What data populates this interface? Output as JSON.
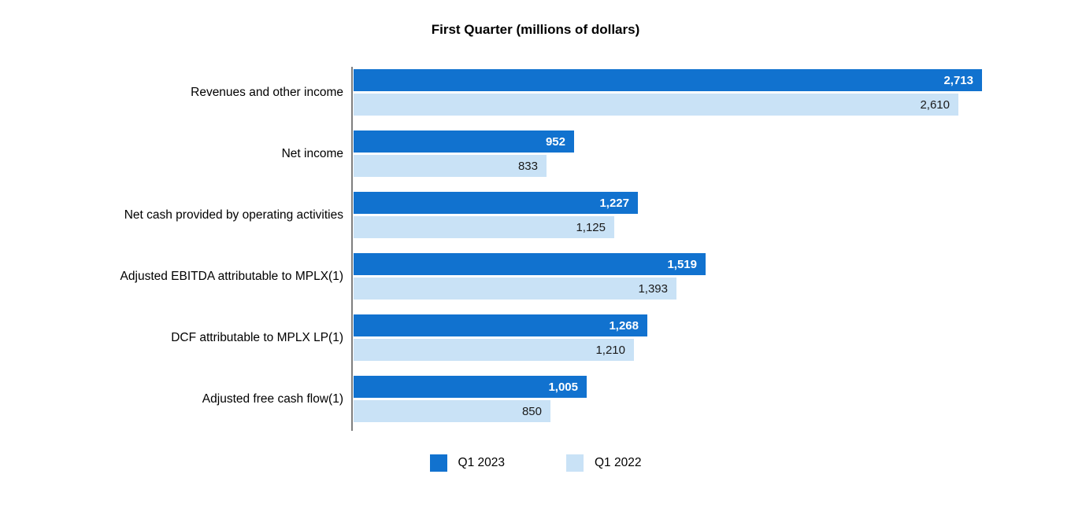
{
  "chart_data": {
    "type": "bar",
    "orientation": "horizontal",
    "title": "First Quarter (millions of dollars)",
    "categories": [
      "Revenues and other income",
      "Net income",
      "Net cash provided by operating activities",
      "Adjusted EBITDA attributable to MPLX(1)",
      "DCF attributable to MPLX LP(1)",
      "Adjusted free cash flow(1)"
    ],
    "series": [
      {
        "name": "Q1 2023",
        "color": "#1172cf",
        "values": [
          2713,
          952,
          1227,
          1519,
          1268,
          1005
        ]
      },
      {
        "name": "Q1 2022",
        "color": "#c9e2f6",
        "values": [
          2610,
          833,
          1125,
          1393,
          1210,
          850
        ]
      }
    ],
    "value_labels": {
      "q1_2023": [
        "2,713",
        "952",
        "1,227",
        "1,519",
        "1,268",
        "1,005"
      ],
      "q1_2022": [
        "2,610",
        "833",
        "1,125",
        "1,393",
        "1,210",
        "850"
      ]
    },
    "xlabel": "",
    "ylabel": "",
    "xlim": [
      0,
      2800
    ],
    "grid": false,
    "legend_position": "bottom",
    "axis_color": "#7f7f7f"
  }
}
